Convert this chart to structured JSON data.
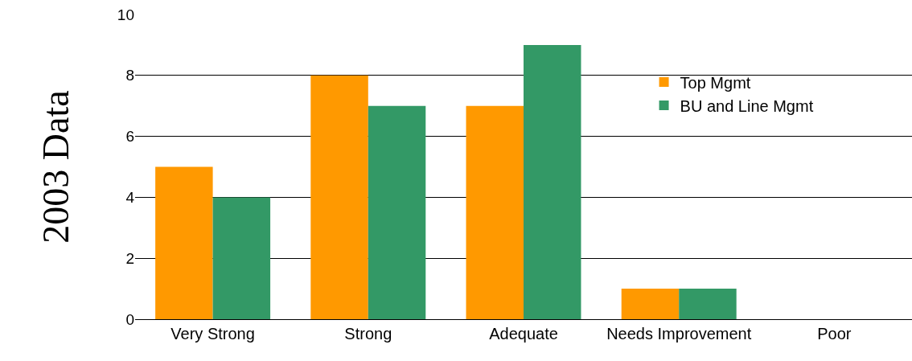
{
  "chart_data": {
    "type": "bar",
    "ylabel": "2003 Data",
    "categories": [
      "Very Strong",
      "Strong",
      "Adequate",
      "Needs Improvement",
      "Poor"
    ],
    "series": [
      {
        "name": "Top Mgmt",
        "color": "#ff9900",
        "values": [
          5,
          8,
          7,
          1,
          0
        ]
      },
      {
        "name": "BU and Line Mgmt",
        "color": "#339966",
        "values": [
          4,
          7,
          9,
          1,
          0
        ]
      }
    ],
    "ylim": [
      0,
      10
    ],
    "yticks": [
      0,
      2,
      4,
      6,
      8,
      10
    ],
    "grid": "y",
    "legend": "top right"
  }
}
